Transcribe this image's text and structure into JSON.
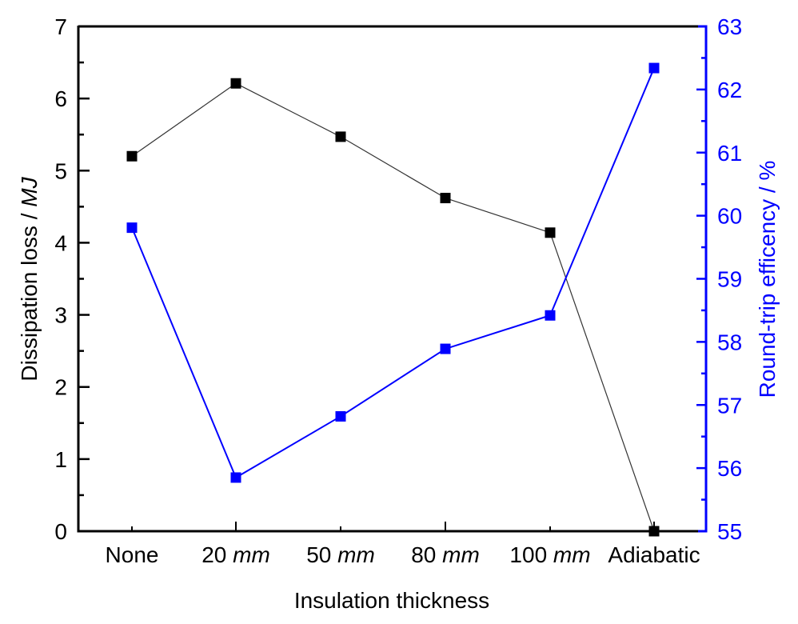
{
  "chart_data": {
    "type": "line",
    "title": "",
    "xlabel": "Insulation thickness",
    "categories": [
      {
        "value": "None",
        "unit": ""
      },
      {
        "value": "20",
        "unit": "mm"
      },
      {
        "value": "50",
        "unit": "mm"
      },
      {
        "value": "80",
        "unit": "mm"
      },
      {
        "value": "100",
        "unit": "mm"
      },
      {
        "value": "Adiabatic",
        "unit": ""
      }
    ],
    "y_left": {
      "label_prefix": "Dissipation loss / ",
      "label_unit": "MJ",
      "ylim": [
        0,
        7
      ],
      "ticks": [
        0,
        1,
        2,
        3,
        4,
        5,
        6,
        7
      ],
      "minor_step": 0.5,
      "color": "#000000"
    },
    "y_right": {
      "label": "Round-trip efficency / %",
      "ylim": [
        55,
        63
      ],
      "ticks": [
        55,
        56,
        57,
        58,
        59,
        60,
        61,
        62,
        63
      ],
      "minor_step": 0.5,
      "color": "#0000ff"
    },
    "series": [
      {
        "name": "Dissipation loss",
        "axis": "left",
        "color": "#000000",
        "line_color": "#333333",
        "marker": "square",
        "values": [
          5.2,
          6.21,
          5.47,
          4.62,
          4.14,
          0.0
        ]
      },
      {
        "name": "Round-trip efficiency",
        "axis": "right",
        "color": "#0000ff",
        "line_color": "#0000ff",
        "marker": "square",
        "values": [
          59.81,
          55.85,
          56.82,
          57.89,
          58.42,
          62.34
        ]
      }
    ],
    "grid": false,
    "legend": "none"
  }
}
